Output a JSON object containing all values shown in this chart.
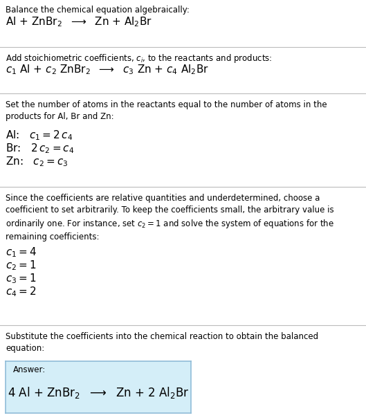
{
  "bg_color": "#ffffff",
  "text_color": "#000000",
  "section1_title": "Balance the chemical equation algebraically:",
  "section1_eq": "Al + ZnBr$_2$  $\\longrightarrow$  Zn + Al$_2$Br",
  "section2_title": "Add stoichiometric coefficients, $c_i$, to the reactants and products:",
  "section2_eq": "$c_1$ Al + $c_2$ ZnBr$_2$  $\\longrightarrow$  $c_3$ Zn + $c_4$ Al$_2$Br",
  "section3_title": "Set the number of atoms in the reactants equal to the number of atoms in the\nproducts for Al, Br and Zn:",
  "section3_lines": [
    "Al:   $c_1 = 2\\,c_4$",
    "Br:   $2\\,c_2 = c_4$",
    "Zn:   $c_2 = c_3$"
  ],
  "section4_title": "Since the coefficients are relative quantities and underdetermined, choose a\ncoefficient to set arbitrarily. To keep the coefficients small, the arbitrary value is\nordinarily one. For instance, set $c_2 = 1$ and solve the system of equations for the\nremaining coefficients:",
  "section4_lines": [
    "$c_1 = 4$",
    "$c_2 = 1$",
    "$c_3 = 1$",
    "$c_4 = 2$"
  ],
  "section5_title": "Substitute the coefficients into the chemical reaction to obtain the balanced\nequation:",
  "answer_label": "Answer:",
  "answer_eq": "4 Al + ZnBr$_2$  $\\longrightarrow$  Zn + 2 Al$_2$Br",
  "answer_box_color": "#d4eef8",
  "answer_box_edge": "#90bcd8",
  "divider_color": "#bbbbbb",
  "sans_font": "DejaVu Sans",
  "body_size": 8.5,
  "eq_size": 11.0,
  "answer_eq_size": 12.0
}
